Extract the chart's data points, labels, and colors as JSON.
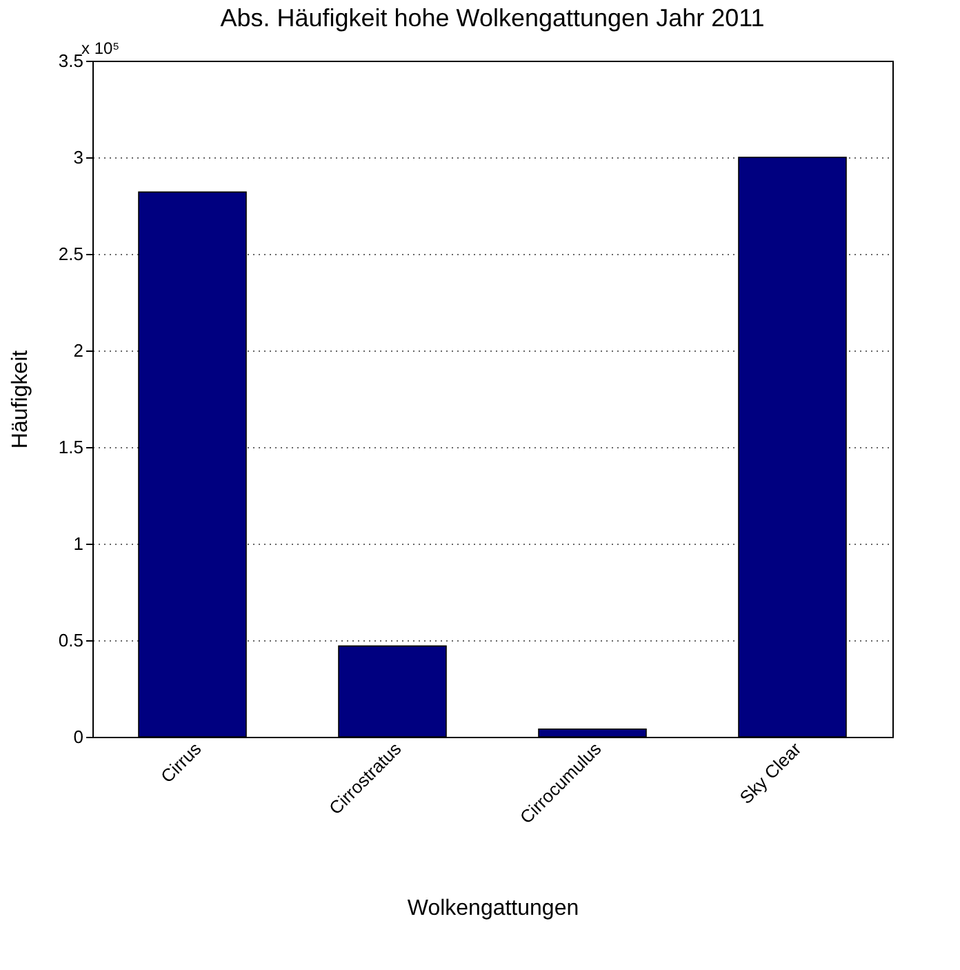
{
  "chart_data": {
    "type": "bar",
    "title": "Abs. Häufigkeit hohe Wolkengattungen Jahr 2011",
    "xlabel": "Wolkengattungen",
    "ylabel": "Häufigkeit",
    "categories": [
      "Cirrus",
      "Cirrostratus",
      "Cirrocumulus",
      "Sky Clear"
    ],
    "values": [
      2.82,
      0.47,
      0.04,
      3.0
    ],
    "color": "#000080",
    "ylim": [
      0,
      3.5
    ],
    "yticks": [
      0,
      0.5,
      1,
      1.5,
      2,
      2.5,
      3,
      3.5
    ],
    "grid": "y",
    "annotations": [
      "x 10⁵"
    ]
  }
}
